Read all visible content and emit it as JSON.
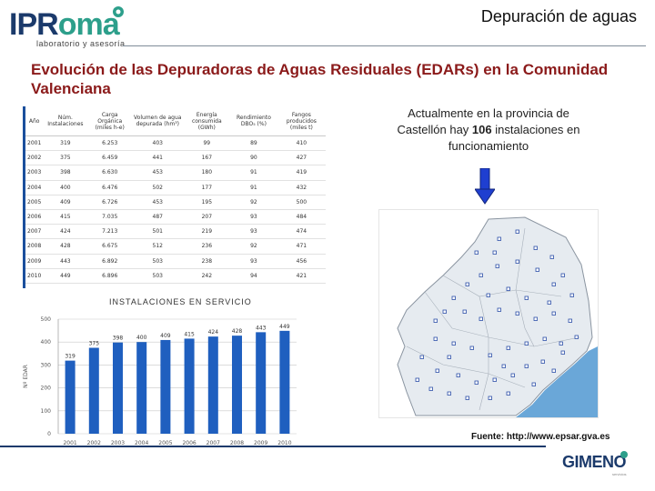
{
  "header": {
    "logo_text_a": "IPR",
    "logo_text_b": "oma",
    "logo_sub": "laboratorio y asesoría",
    "title": "Depuración de aguas"
  },
  "main_title": "Evolución de las Depuradoras de Aguas Residuales (EDARs) en la Comunidad Valenciana",
  "table": {
    "headers": [
      "Año",
      "Núm. Instalaciones",
      "Carga Orgánica (miles h-e)",
      "Volumen de agua depurada (hm³)",
      "Energía consumida (GWh)",
      "Rendimiento DBO₅ (%)",
      "Fangos producidos (miles t)"
    ],
    "rows": [
      [
        "2001",
        "319",
        "6.253",
        "403",
        "99",
        "89",
        "410"
      ],
      [
        "2002",
        "375",
        "6.459",
        "441",
        "167",
        "90",
        "427"
      ],
      [
        "2003",
        "398",
        "6.630",
        "453",
        "180",
        "91",
        "419"
      ],
      [
        "2004",
        "400",
        "6.476",
        "502",
        "177",
        "91",
        "432"
      ],
      [
        "2005",
        "409",
        "6.726",
        "453",
        "195",
        "92",
        "500"
      ],
      [
        "2006",
        "415",
        "7.035",
        "487",
        "207",
        "93",
        "484"
      ],
      [
        "2007",
        "424",
        "7.213",
        "501",
        "219",
        "93",
        "474"
      ],
      [
        "2008",
        "428",
        "6.675",
        "512",
        "236",
        "92",
        "471"
      ],
      [
        "2009",
        "443",
        "6.892",
        "503",
        "238",
        "93",
        "456"
      ],
      [
        "2010",
        "449",
        "6.896",
        "503",
        "242",
        "94",
        "421"
      ]
    ]
  },
  "chart_data": {
    "type": "bar",
    "title": "INSTALACIONES EN SERVICIO",
    "xlabel": "",
    "ylabel": "Nº EDAR",
    "categories": [
      "2001",
      "2002",
      "2003",
      "2004",
      "2005",
      "2006",
      "2007",
      "2008",
      "2009",
      "2010"
    ],
    "values": [
      319,
      375,
      398,
      400,
      409,
      415,
      424,
      428,
      443,
      449
    ],
    "value_labels": [
      "319",
      "375",
      "398",
      "400",
      "409",
      "415",
      "424",
      "428",
      "443",
      "449"
    ],
    "ylim": [
      0,
      500
    ],
    "yticks": [
      "0",
      "100",
      "200",
      "300",
      "400",
      "500"
    ],
    "bar_color": "#1f5fbf",
    "grid": true
  },
  "note": {
    "line1": "Actualmente en la provincia de",
    "line2_pre": "Castellón hay ",
    "line2_bold": "106",
    "line2_post": " instalaciones en",
    "line3": "funcionamiento"
  },
  "source": "Fuente: http://www.epsar.gva.es",
  "footer": {
    "brand": "GIMENO",
    "brand_sub": "servicios"
  },
  "colors": {
    "title_red": "#8b1a1a",
    "navy": "#1b3a6b",
    "teal": "#2d9f8b",
    "arrow_blue": "#1f3fd0"
  }
}
